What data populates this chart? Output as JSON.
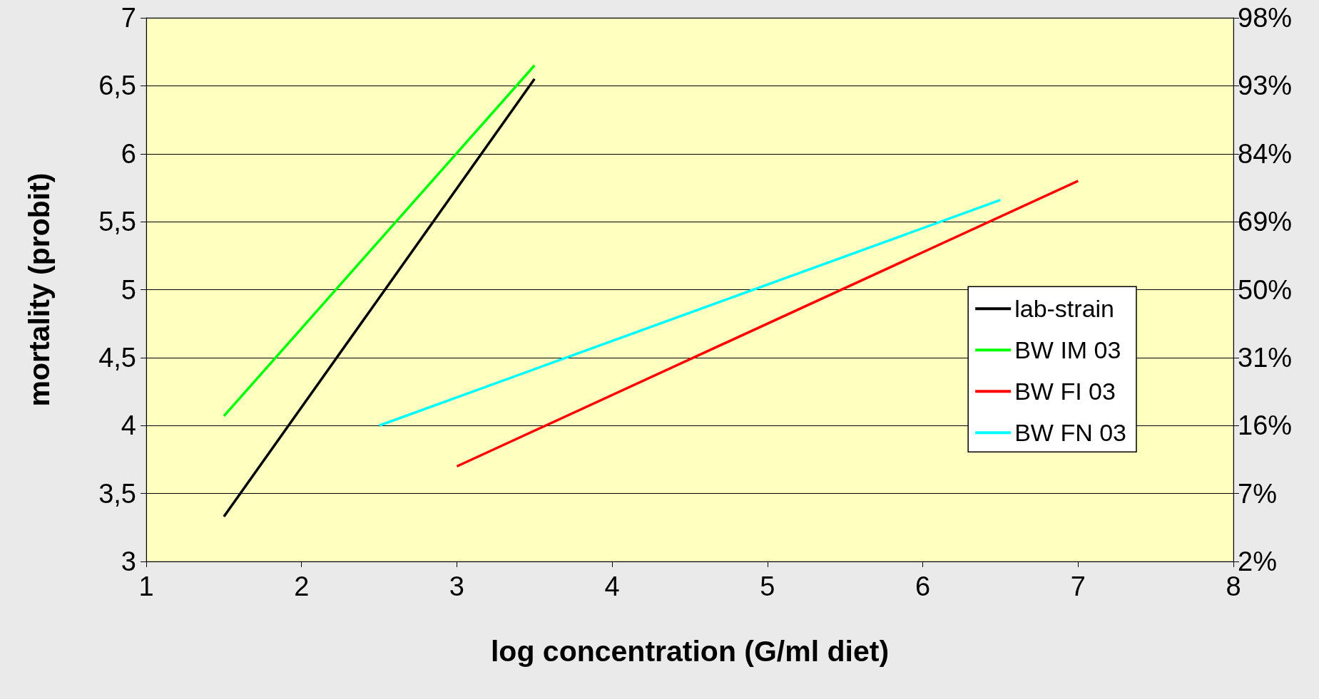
{
  "chart_data": {
    "type": "line",
    "xlabel": "log concentration (G/ml diet)",
    "ylabel": "mortality (probit)",
    "xlim": [
      1,
      8
    ],
    "xticks": [
      1,
      2,
      3,
      4,
      5,
      6,
      7,
      8
    ],
    "ylim": [
      3,
      7
    ],
    "yticks": [
      3,
      {
        "value": 3.5,
        "label": "3,5"
      },
      4,
      {
        "value": 4.5,
        "label": "4,5"
      },
      5,
      {
        "value": 5.5,
        "label": "5,5"
      },
      6,
      {
        "value": 6.5,
        "label": "6,5"
      },
      7
    ],
    "annotations": [
      "2%",
      "7%",
      "16%",
      "31%",
      "50%",
      "69%",
      "84%",
      "93%",
      "98%"
    ],
    "series": [
      {
        "name": "lab-strain",
        "color": "#000000",
        "x": [
          1.5,
          3.5
        ],
        "values": [
          3.33,
          6.55
        ]
      },
      {
        "name": "BW IM 03",
        "color": "#00ff00",
        "x": [
          1.5,
          3.5
        ],
        "values": [
          4.07,
          6.65
        ]
      },
      {
        "name": "BW FI 03",
        "color": "#ff0000",
        "x": [
          3,
          7
        ],
        "values": [
          3.7,
          5.8
        ]
      },
      {
        "name": "BW FN 03",
        "color": "#00ffff",
        "x": [
          2.5,
          6.5
        ],
        "values": [
          4.0,
          5.66
        ]
      }
    ],
    "grid": "y",
    "legend": "right",
    "marker": "none",
    "line_style": "solid"
  }
}
